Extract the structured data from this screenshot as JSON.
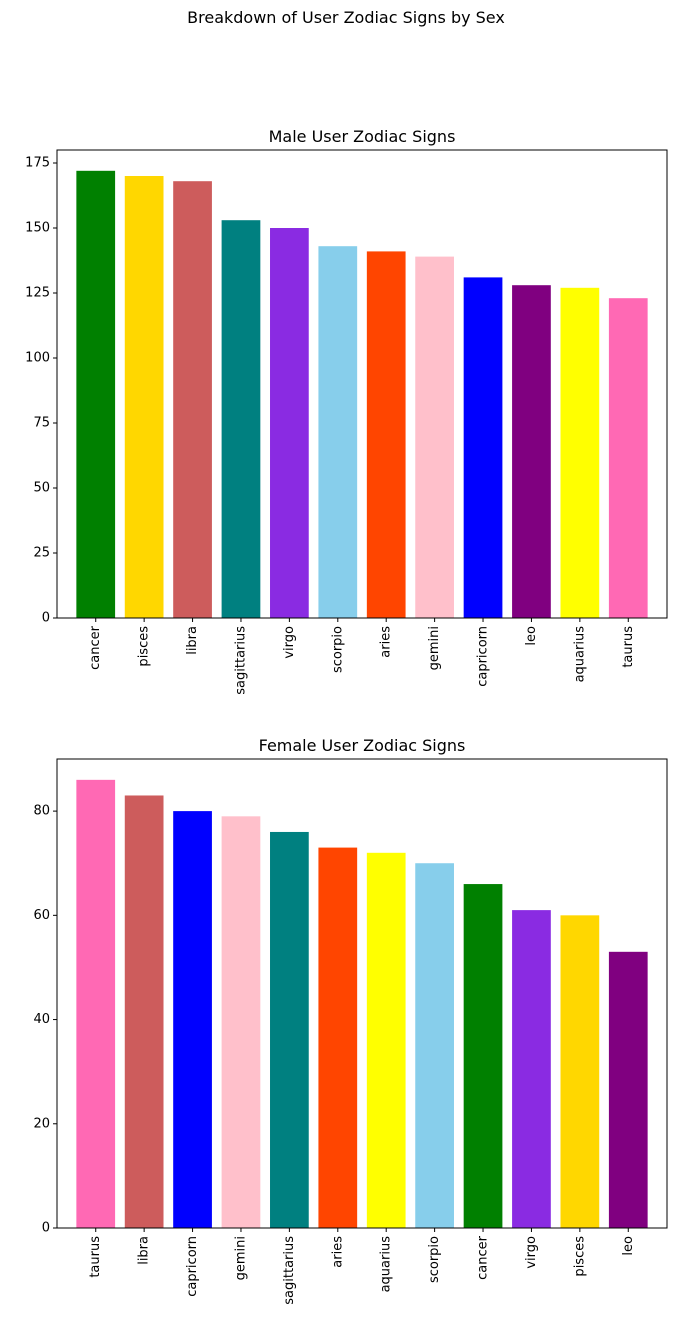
{
  "figure": {
    "suptitle": "Breakdown of User Zodiac Signs by Sex"
  },
  "chart_data": [
    {
      "type": "bar",
      "title": "Male User Zodiac Signs",
      "xlabel": "",
      "ylabel": "",
      "ylim": [
        0,
        180
      ],
      "yticks": [
        0,
        25,
        50,
        75,
        100,
        125,
        150,
        175
      ],
      "grid": false,
      "categories": [
        "cancer",
        "pisces",
        "libra",
        "sagittarius",
        "virgo",
        "scorpio",
        "aries",
        "gemini",
        "capricorn",
        "leo",
        "aquarius",
        "taurus"
      ],
      "values": [
        172,
        170,
        168,
        153,
        150,
        143,
        141,
        139,
        131,
        128,
        127,
        123
      ],
      "colors": [
        "#008000",
        "#FFD700",
        "#CD5C5C",
        "#008080",
        "#8A2BE2",
        "#87CEEB",
        "#FF4500",
        "#FFC0CB",
        "#0000FF",
        "#800080",
        "#FFFF00",
        "#FF69B4"
      ]
    },
    {
      "type": "bar",
      "title": "Female User Zodiac Signs",
      "xlabel": "",
      "ylabel": "",
      "ylim": [
        0,
        90
      ],
      "yticks": [
        0,
        20,
        40,
        60,
        80
      ],
      "grid": false,
      "categories": [
        "taurus",
        "libra",
        "capricorn",
        "gemini",
        "sagittarius",
        "aries",
        "aquarius",
        "scorpio",
        "cancer",
        "virgo",
        "pisces",
        "leo"
      ],
      "values": [
        86,
        83,
        80,
        79,
        76,
        73,
        72,
        70,
        66,
        61,
        60,
        53
      ],
      "colors": [
        "#FF69B4",
        "#CD5C5C",
        "#0000FF",
        "#FFC0CB",
        "#008080",
        "#FF4500",
        "#FFFF00",
        "#87CEEB",
        "#008000",
        "#8A2BE2",
        "#FFD700",
        "#800080"
      ]
    }
  ]
}
